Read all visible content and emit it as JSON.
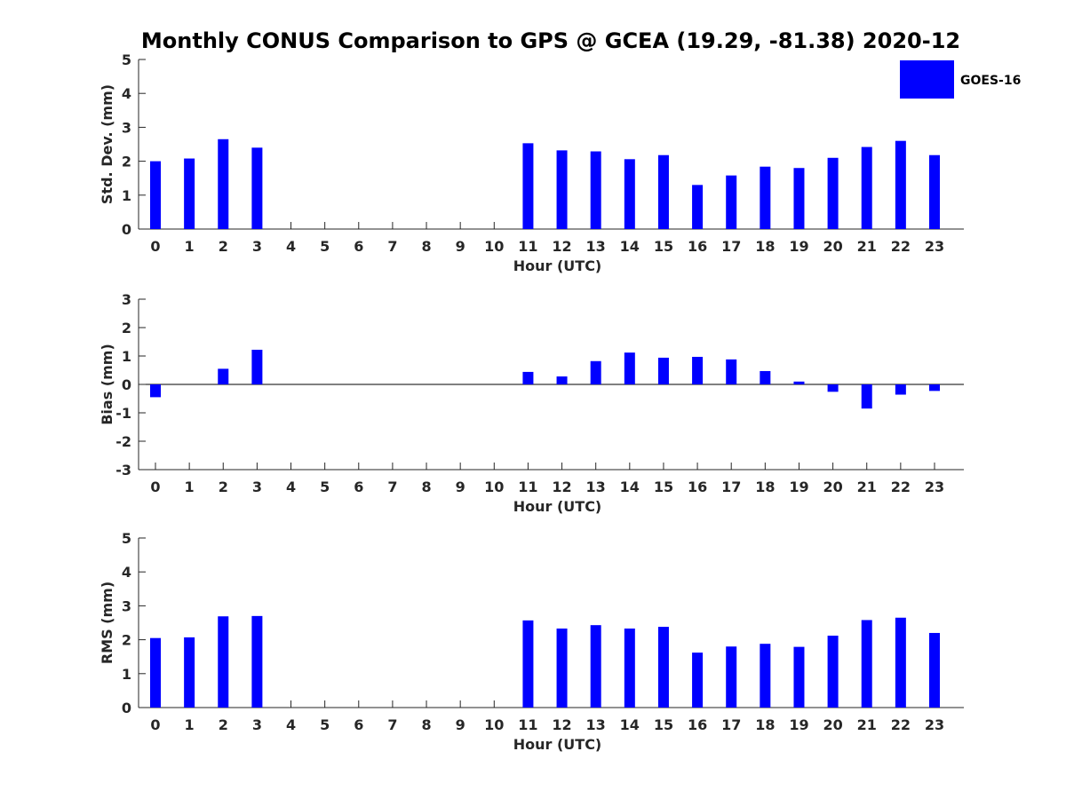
{
  "title": "Monthly CONUS Comparison to GPS @ GCEA (19.29, -81.38) 2020-12",
  "legend": {
    "label": "GOES-16",
    "color": "#0000ff"
  },
  "chart_data": [
    {
      "type": "bar",
      "series_name": "GOES-16",
      "xlabel": "Hour (UTC)",
      "ylabel": "Std. Dev. (mm)",
      "ylim": [
        0,
        5
      ],
      "yticks": [
        0,
        1,
        2,
        3,
        4,
        5
      ],
      "categories": [
        "0",
        "1",
        "2",
        "3",
        "4",
        "5",
        "6",
        "7",
        "8",
        "9",
        "10",
        "11",
        "12",
        "13",
        "14",
        "15",
        "16",
        "17",
        "18",
        "19",
        "20",
        "21",
        "22",
        "23"
      ],
      "values": [
        2.0,
        2.08,
        2.65,
        2.4,
        null,
        null,
        null,
        null,
        null,
        null,
        null,
        2.53,
        2.32,
        2.29,
        2.06,
        2.18,
        1.3,
        1.58,
        1.84,
        1.8,
        2.1,
        2.42,
        2.6,
        2.18
      ]
    },
    {
      "type": "bar",
      "series_name": "GOES-16",
      "xlabel": "Hour (UTC)",
      "ylabel": "Bias (mm)",
      "ylim": [
        -3,
        3
      ],
      "yticks": [
        -3,
        -2,
        -1,
        0,
        1,
        2,
        3
      ],
      "categories": [
        "0",
        "1",
        "2",
        "3",
        "4",
        "5",
        "6",
        "7",
        "8",
        "9",
        "10",
        "11",
        "12",
        "13",
        "14",
        "15",
        "16",
        "17",
        "18",
        "19",
        "20",
        "21",
        "22",
        "23"
      ],
      "values": [
        -0.45,
        null,
        0.55,
        1.22,
        null,
        null,
        null,
        null,
        null,
        null,
        null,
        0.44,
        0.28,
        0.82,
        1.12,
        0.94,
        0.97,
        0.88,
        0.47,
        0.1,
        -0.26,
        -0.85,
        -0.36,
        -0.23
      ]
    },
    {
      "type": "bar",
      "series_name": "GOES-16",
      "xlabel": "Hour (UTC)",
      "ylabel": "RMS (mm)",
      "ylim": [
        0,
        5
      ],
      "yticks": [
        0,
        1,
        2,
        3,
        4,
        5
      ],
      "categories": [
        "0",
        "1",
        "2",
        "3",
        "4",
        "5",
        "6",
        "7",
        "8",
        "9",
        "10",
        "11",
        "12",
        "13",
        "14",
        "15",
        "16",
        "17",
        "18",
        "19",
        "20",
        "21",
        "22",
        "23"
      ],
      "values": [
        2.05,
        2.07,
        2.69,
        2.7,
        null,
        null,
        null,
        null,
        null,
        null,
        null,
        2.57,
        2.33,
        2.43,
        2.33,
        2.38,
        1.62,
        1.8,
        1.88,
        1.79,
        2.12,
        2.58,
        2.65,
        2.2
      ]
    }
  ]
}
